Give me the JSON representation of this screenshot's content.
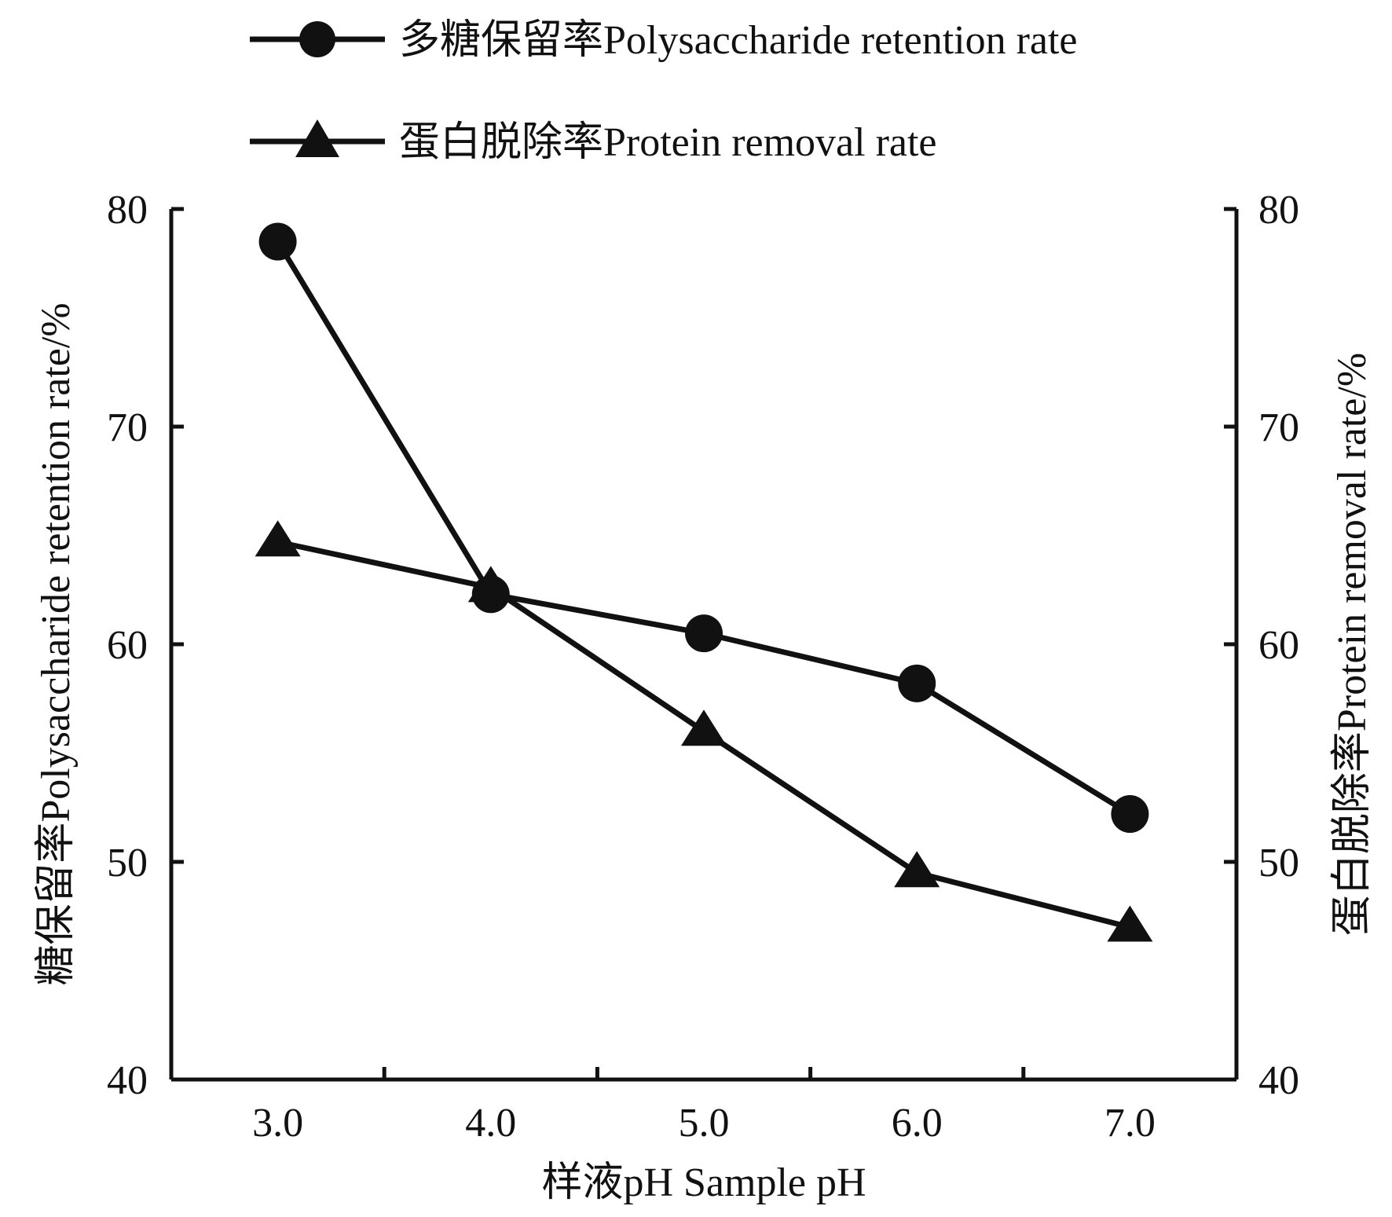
{
  "chart_data": {
    "type": "line",
    "x": [
      3.0,
      4.0,
      5.0,
      6.0,
      7.0
    ],
    "x_tick_labels": [
      "3.0",
      "4.0",
      "5.0",
      "6.0",
      "7.0"
    ],
    "xlim": [
      2.5,
      7.5
    ],
    "xlabel": "样液pH Sample pH",
    "ylabel_left": "糖保留率Polysaccharide retention rate/%",
    "ylabel_right": "蛋白脱除率Protein removal rate/%",
    "ylim": [
      40,
      80
    ],
    "y_ticks": [
      40,
      50,
      60,
      70,
      80
    ],
    "y_tick_labels": [
      "40",
      "50",
      "60",
      "70",
      "80"
    ],
    "grid": false,
    "legend_position": "top",
    "series": [
      {
        "name": "多糖保留率Polysaccharide retention rate",
        "marker": "circle",
        "axis": "left",
        "color": "#111111",
        "values": [
          78.5,
          62.3,
          60.5,
          58.2,
          52.2
        ]
      },
      {
        "name": "蛋白脱除率Protein removal rate",
        "marker": "triangle",
        "axis": "right",
        "color": "#111111",
        "values": [
          64.7,
          62.6,
          56.0,
          49.5,
          47.0
        ]
      }
    ]
  }
}
